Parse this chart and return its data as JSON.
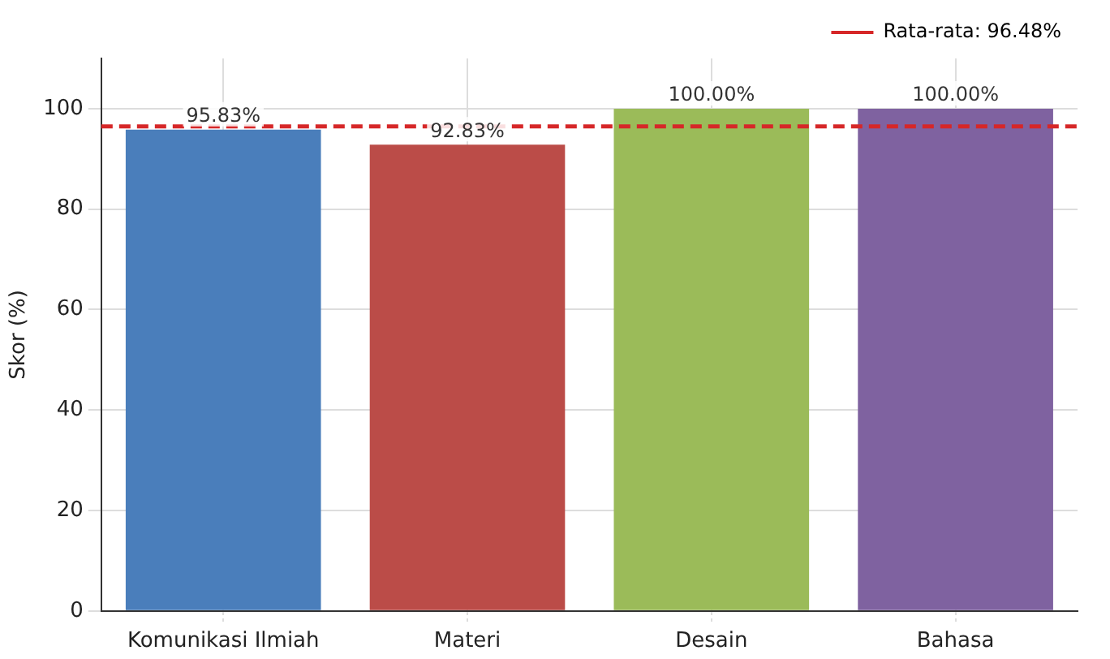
{
  "chart_data": {
    "type": "bar",
    "ylabel": "Skor (%)",
    "categories": [
      "Komunikasi Ilmiah",
      "Materi",
      "Desain",
      "Bahasa"
    ],
    "values": [
      95.83,
      92.83,
      100,
      100
    ],
    "colors": [
      "#4a7ebb",
      "#bb4c48",
      "#9bbb59",
      "#7f62a0"
    ],
    "ylim": [
      0,
      110
    ],
    "yticks": [
      0,
      20,
      40,
      60,
      80,
      100
    ],
    "value_labels": [
      "95.83%",
      "92.83%",
      "100.00%",
      "100.00%"
    ],
    "grid": true,
    "legend": "top right",
    "ref_lines": [
      {
        "axis": "y",
        "value": 96.48,
        "label": "Rata-rata: 96.48%",
        "color": "#d62728",
        "line_style": "dashed"
      }
    ]
  }
}
